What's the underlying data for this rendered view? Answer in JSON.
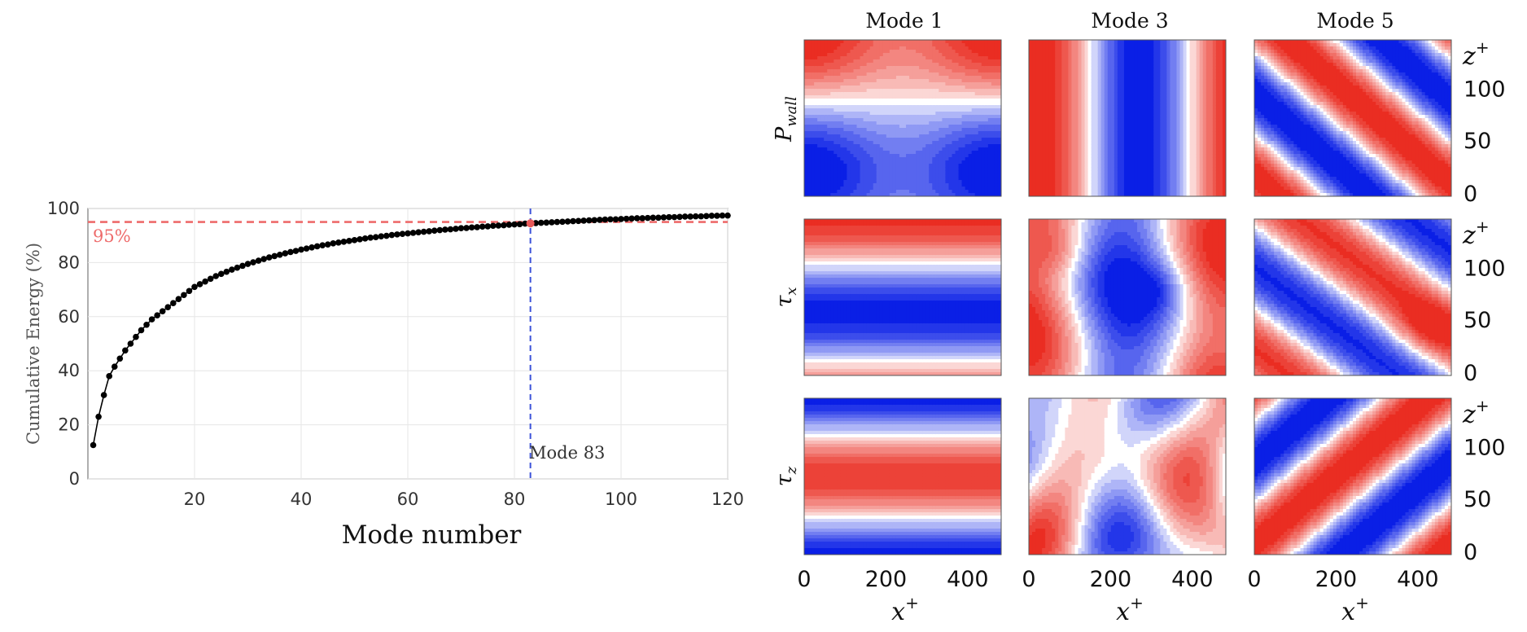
{
  "chart_data": [
    {
      "type": "line",
      "xlabel": "Mode number",
      "ylabel": "Cumulative Energy (%)",
      "xlim": [
        0,
        120
      ],
      "ylim": [
        0,
        100
      ],
      "xticks": [
        20,
        40,
        60,
        80,
        100,
        120
      ],
      "yticks": [
        0,
        20,
        40,
        60,
        80,
        100
      ],
      "grid": true,
      "series": [
        {
          "color": "#000000",
          "marker": "dot",
          "x": [
            1,
            2,
            3,
            4,
            5,
            6,
            7,
            8,
            9,
            10,
            11,
            12,
            13,
            14,
            15,
            16,
            17,
            18,
            19,
            20,
            21,
            22,
            23,
            24,
            25,
            26,
            27,
            28,
            29,
            30,
            31,
            32,
            33,
            34,
            35,
            36,
            37,
            38,
            39,
            40,
            41,
            42,
            43,
            44,
            45,
            46,
            47,
            48,
            49,
            50,
            51,
            52,
            53,
            54,
            55,
            56,
            57,
            58,
            59,
            60,
            61,
            62,
            63,
            64,
            65,
            66,
            67,
            68,
            69,
            70,
            71,
            72,
            73,
            74,
            75,
            76,
            77,
            78,
            79,
            80,
            81,
            82,
            83,
            84,
            85,
            86,
            87,
            88,
            89,
            90,
            91,
            92,
            93,
            94,
            95,
            96,
            97,
            98,
            99,
            100,
            101,
            102,
            103,
            104,
            105,
            106,
            107,
            108,
            109,
            110,
            111,
            112,
            113,
            114,
            115,
            116,
            117,
            118,
            119,
            120
          ],
          "values": [
            12.5,
            23.0,
            31.0,
            38.0,
            41.5,
            44.5,
            47.5,
            50.0,
            52.5,
            55.0,
            57.0,
            59.0,
            60.5,
            62.0,
            63.5,
            65.0,
            66.5,
            68.0,
            69.5,
            71.0,
            72.0,
            73.0,
            74.0,
            75.0,
            75.8,
            76.6,
            77.4,
            78.1,
            78.8,
            79.5,
            80.1,
            80.7,
            81.3,
            81.9,
            82.4,
            82.9,
            83.4,
            83.9,
            84.3,
            84.8,
            85.2,
            85.6,
            86.0,
            86.4,
            86.7,
            87.1,
            87.4,
            87.7,
            88.0,
            88.3,
            88.6,
            88.9,
            89.2,
            89.4,
            89.7,
            89.9,
            90.2,
            90.4,
            90.6,
            90.8,
            91.0,
            91.2,
            91.4,
            91.6,
            91.8,
            92.0,
            92.2,
            92.3,
            92.5,
            92.7,
            92.8,
            93.0,
            93.1,
            93.3,
            93.4,
            93.6,
            93.7,
            93.8,
            94.0,
            94.1,
            94.2,
            94.4,
            94.5,
            94.6,
            94.7,
            94.8,
            94.9,
            95.0,
            95.1,
            95.2,
            95.3,
            95.4,
            95.5,
            95.6,
            95.7,
            95.8,
            95.9,
            96.0,
            96.0,
            96.1,
            96.2,
            96.3,
            96.4,
            96.4,
            96.5,
            96.6,
            96.6,
            96.7,
            96.8,
            96.8,
            96.9,
            97.0,
            97.0,
            97.1,
            97.1,
            97.2,
            97.3,
            97.3,
            97.4,
            97.4
          ]
        }
      ],
      "annotations": [
        {
          "type": "hline",
          "y": 95,
          "color": "#ee6b6b",
          "style": "dashed",
          "label": "95%"
        },
        {
          "type": "vline",
          "x": 83,
          "color": "#3b52d9",
          "style": "dashed",
          "label": "Mode 83"
        },
        {
          "type": "point",
          "x": 83,
          "y": 94.5,
          "color": "#e85a5a"
        }
      ]
    },
    {
      "type": "heatmap",
      "layout": "3x3 contour grid",
      "columns": [
        "Mode 1",
        "Mode 3",
        "Mode 5"
      ],
      "rows": [
        "P_wall",
        "τ_x",
        "τ_z"
      ],
      "x_axis": {
        "label": "x",
        "sup": "+",
        "ticks": [
          "0",
          "200",
          "400"
        ]
      },
      "y_axis": {
        "label": "z",
        "sup": "+",
        "ticks": [
          "0",
          "50",
          "100"
        ]
      },
      "colormap": [
        "#0a1fe6",
        "#ffffff",
        "#ea2d22"
      ]
    }
  ],
  "labels": {
    "line_xlabel": "Mode number",
    "line_ylabel": "Cumulative Energy (%)",
    "hline_label": "95%",
    "vline_label": "Mode 83",
    "col_titles": [
      "Mode 1",
      "Mode 3",
      "Mode 5"
    ],
    "row_label_main": [
      "P",
      "τ",
      "τ"
    ],
    "row_label_sub": [
      "wall",
      "x",
      "z"
    ],
    "x_axis_main": "x",
    "x_axis_sup": "+",
    "z_axis_main": "z",
    "z_axis_sup": "+",
    "x_ticks": [
      "0",
      "200",
      "400"
    ],
    "z_ticks": [
      "0",
      "50",
      "100"
    ]
  }
}
